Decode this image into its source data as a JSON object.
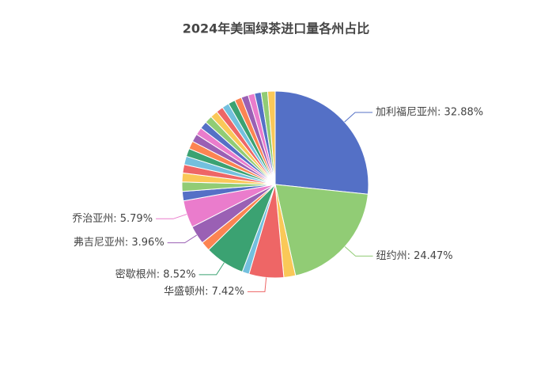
{
  "chart_data": {
    "type": "pie",
    "title": "2024年美国绿茶进口量各州占比",
    "values": [
      32.88,
      24.47,
      2.5,
      7.42,
      1.5,
      8.52,
      2.0,
      3.96,
      5.79,
      2.0,
      2.0,
      1.9,
      1.8,
      1.8,
      1.7,
      1.7,
      1.7,
      1.6,
      1.6,
      1.6,
      1.6,
      1.5,
      1.5,
      1.5,
      1.5,
      1.5,
      1.4,
      1.4,
      1.4,
      1.6
    ],
    "value_labels": [
      "加利福尼亚州: 32.88%",
      "纽约州: 24.47%",
      null,
      "华盛顿州: 7.42%",
      null,
      "密歇根州: 8.52%",
      null,
      "弗吉尼亚州: 3.96%",
      "乔治亚州: 5.79%",
      null,
      null,
      null,
      null,
      null,
      null,
      null,
      null,
      null,
      null,
      null,
      null,
      null,
      null,
      null,
      null,
      null,
      null,
      null,
      null,
      null
    ],
    "colors": [
      "#5470c6",
      "#91cc75",
      "#fac858",
      "#ee6666",
      "#73c0de",
      "#3ba272",
      "#fc8452",
      "#9a60b4",
      "#ea7ccc"
    ]
  }
}
